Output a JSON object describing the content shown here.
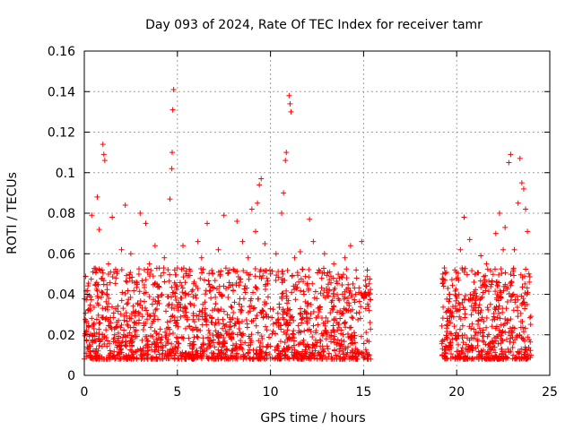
{
  "chart_data": {
    "type": "scatter",
    "title": "Day 093 of 2024, Rate Of TEC Index for receiver tamr",
    "xlabel": "GPS time / hours",
    "ylabel": "ROTI / TECUs",
    "xlim": [
      0,
      25
    ],
    "ylim": [
      0,
      0.16
    ],
    "xticks": [
      0,
      5,
      10,
      15,
      20,
      25
    ],
    "xtick_labels": [
      "0",
      "5",
      "10",
      "15",
      "20",
      "25"
    ],
    "yticks": [
      0,
      0.02,
      0.04,
      0.06,
      0.08,
      0.1,
      0.12,
      0.14,
      0.16
    ],
    "ytick_labels": [
      "0",
      "0.02",
      "0.04",
      "0.06",
      "0.08",
      "0.1",
      "0.12",
      "0.14",
      "0.16"
    ],
    "grid": true,
    "marker": "plus",
    "color": "#ff0000",
    "data_gap_hours": [
      15.4,
      19.2
    ],
    "series": [
      {
        "points": [
          [
            0.2,
            0.032
          ],
          [
            0.4,
            0.079
          ],
          [
            0.6,
            0.045
          ],
          [
            0.7,
            0.088
          ],
          [
            0.8,
            0.072
          ],
          [
            1.0,
            0.114
          ],
          [
            1.05,
            0.109
          ],
          [
            1.1,
            0.106
          ],
          [
            1.3,
            0.055
          ],
          [
            1.5,
            0.078
          ],
          [
            1.7,
            0.048
          ],
          [
            2.0,
            0.062
          ],
          [
            2.2,
            0.084
          ],
          [
            2.5,
            0.06
          ],
          [
            2.8,
            0.046
          ],
          [
            3.0,
            0.08
          ],
          [
            3.3,
            0.075
          ],
          [
            3.5,
            0.055
          ],
          [
            3.8,
            0.064
          ],
          [
            4.0,
            0.044
          ],
          [
            4.3,
            0.058
          ],
          [
            4.6,
            0.087
          ],
          [
            4.7,
            0.102
          ],
          [
            4.72,
            0.11
          ],
          [
            4.75,
            0.131
          ],
          [
            4.8,
            0.141
          ],
          [
            5.0,
            0.053
          ],
          [
            5.3,
            0.064
          ],
          [
            5.6,
            0.04
          ],
          [
            5.9,
            0.046
          ],
          [
            6.1,
            0.066
          ],
          [
            6.3,
            0.058
          ],
          [
            6.6,
            0.075
          ],
          [
            6.9,
            0.05
          ],
          [
            7.2,
            0.062
          ],
          [
            7.5,
            0.079
          ],
          [
            7.8,
            0.052
          ],
          [
            8.0,
            0.042
          ],
          [
            8.2,
            0.076
          ],
          [
            8.5,
            0.066
          ],
          [
            8.8,
            0.058
          ],
          [
            9.0,
            0.082
          ],
          [
            9.2,
            0.071
          ],
          [
            9.3,
            0.085
          ],
          [
            9.4,
            0.094
          ],
          [
            9.5,
            0.097
          ],
          [
            9.7,
            0.065
          ],
          [
            10.0,
            0.05
          ],
          [
            10.3,
            0.06
          ],
          [
            10.6,
            0.08
          ],
          [
            10.7,
            0.09
          ],
          [
            10.8,
            0.106
          ],
          [
            10.85,
            0.11
          ],
          [
            11.0,
            0.138
          ],
          [
            11.05,
            0.134
          ],
          [
            11.1,
            0.13
          ],
          [
            11.3,
            0.058
          ],
          [
            11.6,
            0.061
          ],
          [
            11.8,
            0.04
          ],
          [
            12.1,
            0.077
          ],
          [
            12.3,
            0.066
          ],
          [
            12.6,
            0.052
          ],
          [
            12.9,
            0.06
          ],
          [
            13.1,
            0.045
          ],
          [
            13.4,
            0.055
          ],
          [
            13.7,
            0.048
          ],
          [
            14.0,
            0.058
          ],
          [
            14.3,
            0.064
          ],
          [
            14.6,
            0.052
          ],
          [
            14.9,
            0.066
          ],
          [
            15.1,
            0.041
          ],
          [
            15.3,
            0.032
          ],
          [
            19.3,
            0.044
          ],
          [
            19.6,
            0.04
          ],
          [
            19.9,
            0.052
          ],
          [
            20.2,
            0.062
          ],
          [
            20.4,
            0.078
          ],
          [
            20.7,
            0.067
          ],
          [
            21.0,
            0.05
          ],
          [
            21.3,
            0.059
          ],
          [
            21.6,
            0.055
          ],
          [
            21.9,
            0.046
          ],
          [
            22.1,
            0.07
          ],
          [
            22.3,
            0.08
          ],
          [
            22.5,
            0.062
          ],
          [
            22.6,
            0.073
          ],
          [
            22.8,
            0.105
          ],
          [
            22.9,
            0.109
          ],
          [
            23.1,
            0.062
          ],
          [
            23.3,
            0.085
          ],
          [
            23.4,
            0.107
          ],
          [
            23.5,
            0.095
          ],
          [
            23.6,
            0.092
          ],
          [
            23.7,
            0.082
          ],
          [
            23.8,
            0.071
          ],
          [
            23.9,
            0.046
          ]
        ]
      }
    ]
  }
}
